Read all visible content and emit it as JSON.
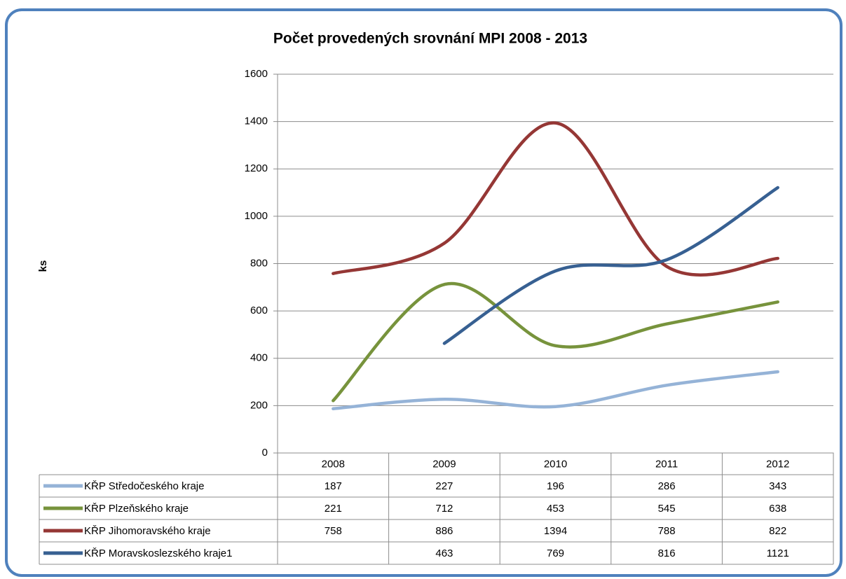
{
  "chart_data": {
    "type": "line",
    "title": "Počet  provedených srovnání MPI 2008 - 2013",
    "y_label": "ks",
    "categories": [
      "2008",
      "2009",
      "2010",
      "2011",
      "2012"
    ],
    "series": [
      {
        "name": "KŘP Středočeského kraje",
        "color": "#95b3d7",
        "values": [
          187,
          227,
          196,
          286,
          343
        ]
      },
      {
        "name": "KŘP Plzeňského kraje",
        "color": "#77933c",
        "values": [
          221,
          712,
          453,
          545,
          638
        ]
      },
      {
        "name": "KŘP Jihomoravského kraje",
        "color": "#953735",
        "values": [
          758,
          886,
          1394,
          788,
          822
        ]
      },
      {
        "name": "KŘP Moravskoslezského kraje1",
        "color": "#376092",
        "values": [
          null,
          463,
          769,
          816,
          1121
        ]
      }
    ],
    "ylim": [
      0,
      1600
    ],
    "yticks": [
      0,
      200,
      400,
      600,
      800,
      1000,
      1200,
      1400,
      1600
    ],
    "grid": true,
    "smooth": true,
    "data_table": true
  }
}
